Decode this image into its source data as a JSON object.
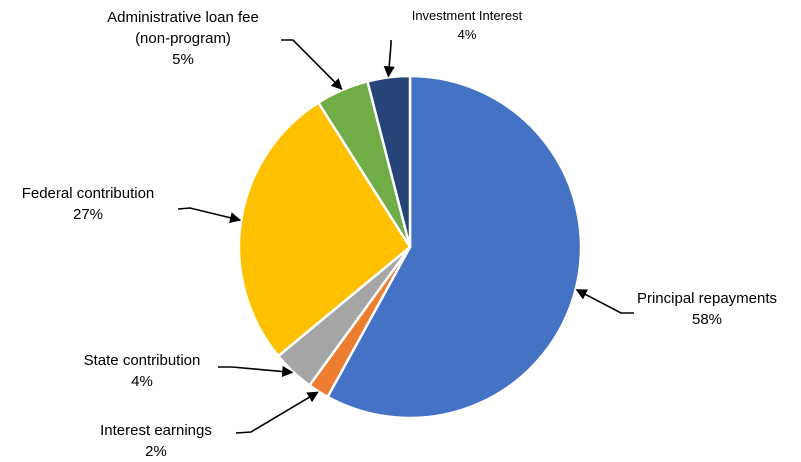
{
  "chart_data": {
    "type": "pie",
    "start_angle_deg": 0,
    "direction": "clockwise",
    "slices": [
      {
        "label": "Principal repayments",
        "value": 58,
        "value_label": "58%",
        "color": "#4472C4"
      },
      {
        "label": "Interest earnings",
        "value": 2,
        "value_label": "2%",
        "color": "#ED7D31"
      },
      {
        "label": "State contribution",
        "value": 4,
        "value_label": "4%",
        "color": "#A5A5A5"
      },
      {
        "label": "Federal contribution",
        "value": 27,
        "value_label": "27%",
        "color": "#FFC000"
      },
      {
        "label": "Administrative loan fee (non-program)",
        "label_lines": [
          "Administrative loan fee",
          "(non-program)"
        ],
        "value": 5,
        "value_label": "5%",
        "color": "#70AD47"
      },
      {
        "label": "Investment Interest",
        "value": 4,
        "value_label": "4%",
        "color": "#264478"
      }
    ],
    "slice_border_color": "#ffffff",
    "callout_arrow_color": "#000000"
  }
}
